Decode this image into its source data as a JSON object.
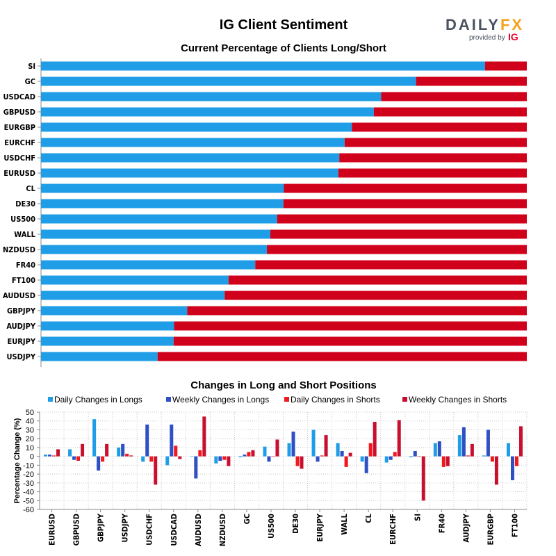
{
  "title": "IG Client Sentiment",
  "logo": {
    "brand_left": "DAILY",
    "brand_right": "FX",
    "provided_by": "provided by",
    "ig": "IG"
  },
  "colors": {
    "long": "#1f9de6",
    "short": "#d0021b",
    "daily_longs": "#1f9de6",
    "weekly_longs": "#2f4fc4",
    "daily_shorts": "#f0191e",
    "weekly_shorts": "#c8102e"
  },
  "chart_data": [
    {
      "type": "bar",
      "orientation": "horizontal",
      "stacked": true,
      "title": "Current Percentage of Clients Long/Short",
      "categories": [
        "SI",
        "GC",
        "USDCAD",
        "GBPUSD",
        "EURGBP",
        "EURCHF",
        "USDCHF",
        "EURUSD",
        "CL",
        "DE30",
        "US500",
        "WALL",
        "NZDUSD",
        "FR40",
        "FT100",
        "AUDUSD",
        "GBPJPY",
        "AUDJPY",
        "EURJPY",
        "USDJPY"
      ],
      "series": [
        {
          "values": [
            91.4,
            77.2,
            70.0,
            68.5,
            64.0,
            62.5,
            61.4,
            61.2,
            50.0,
            49.9,
            48.6,
            47.2,
            46.5,
            44.1,
            38.6,
            37.8,
            30.1,
            27.4,
            27.3,
            24.0
          ]
        },
        {
          "values": [
            8.6,
            22.8,
            30.0,
            31.5,
            36.0,
            37.5,
            38.6,
            38.8,
            50.0,
            50.1,
            51.4,
            52.8,
            53.5,
            55.9,
            61.4,
            62.2,
            69.9,
            72.6,
            72.7,
            76.0
          ]
        }
      ],
      "xlim": [
        0,
        100
      ]
    },
    {
      "type": "bar",
      "title": "Changes in Long and Short Positions",
      "ylabel": "Percentage Change (%)",
      "ylim": [
        -60,
        50
      ],
      "yticks": [
        50,
        40,
        30,
        20,
        10,
        0,
        -10,
        -20,
        -30,
        -40,
        -50,
        -60
      ],
      "categories": [
        "EURUSD",
        "GBPUSD",
        "GBPJPY",
        "USDJPY",
        "USDCHF",
        "USDCAD",
        "AUDUSD",
        "NZDUSD",
        "GC",
        "US500",
        "DE30",
        "EURJPY",
        "WALL",
        "CL",
        "EURCHF",
        "SI",
        "FR40",
        "AUDJPY",
        "EURGBP",
        "FT100"
      ],
      "series": [
        {
          "name": "Daily Changes in Longs",
          "values": [
            2,
            8,
            42,
            10,
            -6,
            -10,
            0,
            -8,
            -1,
            11,
            15,
            30,
            15,
            -6,
            -7,
            -1,
            15,
            24,
            1,
            15
          ]
        },
        {
          "name": "Weekly Changes in Longs",
          "values": [
            2,
            -4,
            -16,
            14,
            36,
            36,
            -25,
            -5,
            2,
            -6,
            28,
            -6,
            6,
            -19,
            -4,
            6,
            17,
            33,
            30,
            -27
          ]
        },
        {
          "name": "Daily Changes in Shorts",
          "values": [
            1,
            -5,
            -6,
            3,
            -6,
            12,
            7,
            -4,
            5,
            0,
            -11,
            1,
            -12,
            15,
            5,
            0,
            -12,
            1,
            -6,
            -11
          ]
        },
        {
          "name": "Weekly Changes in Shorts",
          "values": [
            8,
            14,
            14,
            1,
            -32,
            -3,
            45,
            -11,
            7,
            19,
            -14,
            24,
            4,
            39,
            41,
            -50,
            -11,
            14,
            -32,
            34
          ]
        }
      ]
    }
  ]
}
